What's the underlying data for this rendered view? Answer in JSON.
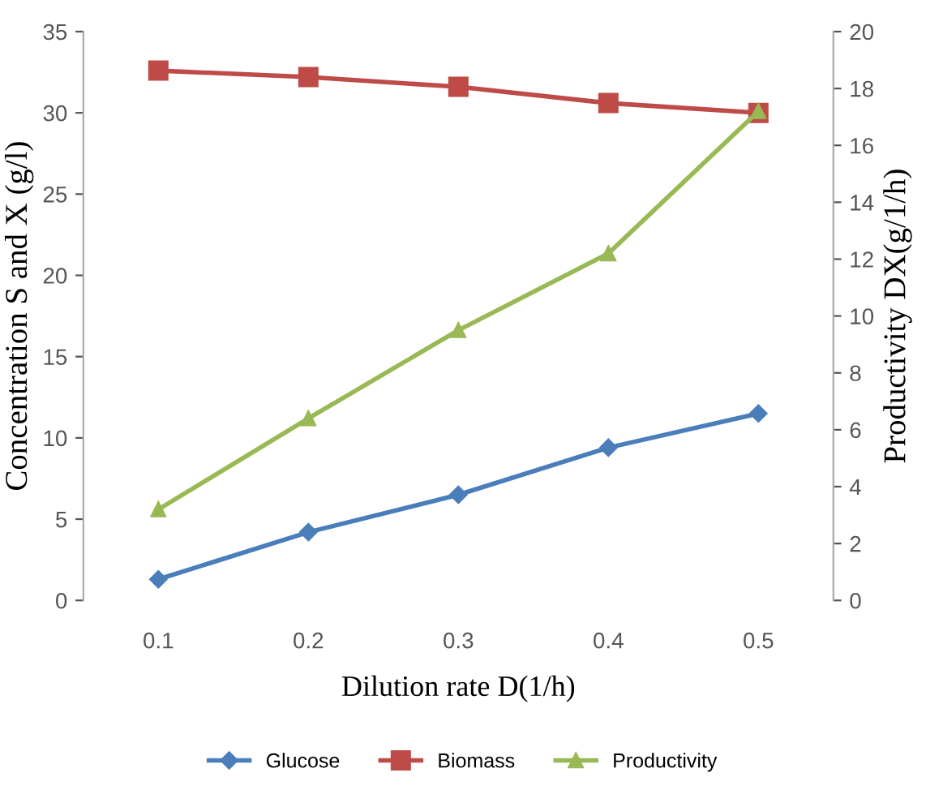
{
  "chart_data": {
    "type": "line",
    "xlabel": "Dilution rate D(1/h)",
    "ylabel": "Concentration S and X (g/l)",
    "y2label": "Productivity DX(g/1/h)",
    "categories": [
      "0.1",
      "0.2",
      "0.3",
      "0.4",
      "0.5"
    ],
    "series": [
      {
        "name": "Glucose",
        "color": "#4a7ebb",
        "marker": "diamond",
        "values": [
          1.3,
          4.2,
          6.5,
          9.4,
          11.5
        ]
      },
      {
        "name": "Biomass",
        "color": "#be4b48",
        "marker": "square",
        "values": [
          32.6,
          32.2,
          31.6,
          30.6,
          30.0
        ]
      },
      {
        "name": "Productivity",
        "color": "#98b954",
        "marker": "triangle",
        "axis": "y2",
        "values": [
          3.2,
          6.4,
          9.5,
          12.2,
          17.2
        ]
      }
    ],
    "ylim": [
      0,
      35
    ],
    "yticks": [
      0,
      5,
      10,
      15,
      20,
      25,
      30,
      35
    ],
    "y2lim": [
      0,
      20
    ],
    "y2ticks": [
      0,
      2,
      4,
      6,
      8,
      10,
      12,
      14,
      16,
      18,
      20
    ],
    "grid": false,
    "legend": "bottom"
  }
}
